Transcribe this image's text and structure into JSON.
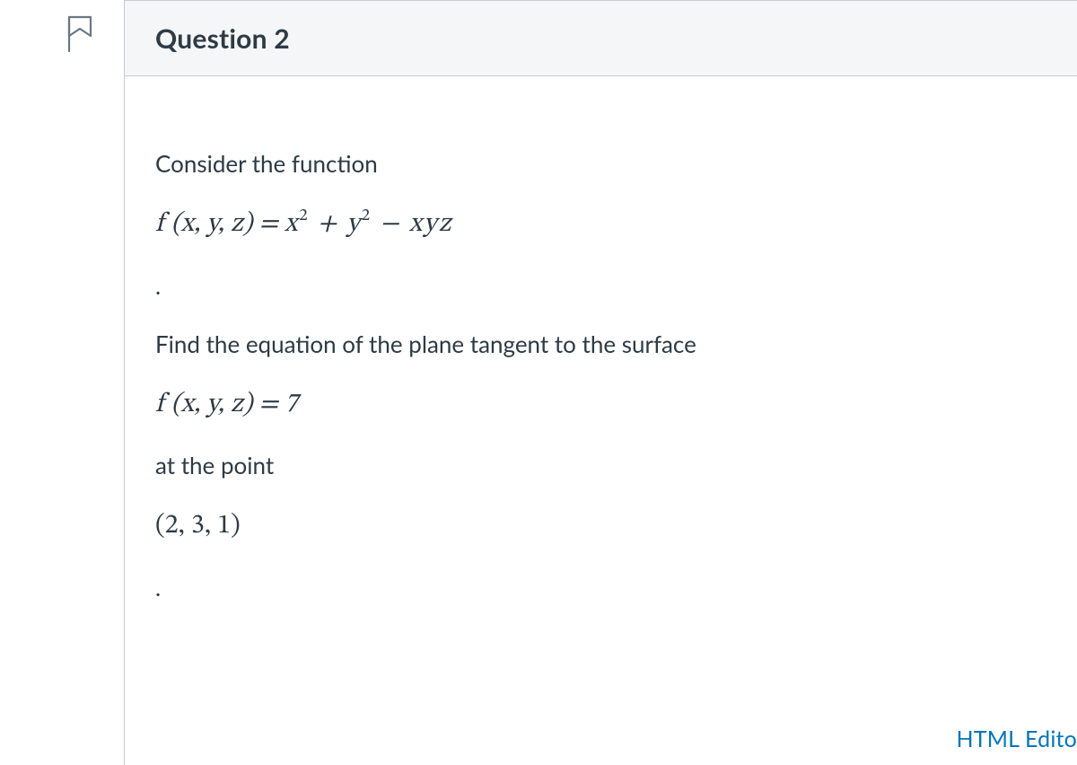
{
  "colors": {
    "text": "#2d3b45",
    "border": "#c6cbd0",
    "header_bg": "#f5f6f7",
    "link": "#0576b9",
    "icon_stroke": "#6a7883",
    "page_bg": "#ffffff"
  },
  "header": {
    "title": "Question 2"
  },
  "body": {
    "line1": "Consider the function",
    "eq1_lhs": "f (x, y, z) = ",
    "eq1_rhs_html": "x<sup>2</sup> + y<sup>2</sup> − xyz",
    "dot1": ".",
    "line2": "Find the equation of the plane tangent to the surface",
    "eq2": "f (x, y, z) = 7",
    "line3": "at the point",
    "point": "(2, 3, 1)",
    "dot2": "."
  },
  "footer": {
    "editor_label": "HTML Edito"
  }
}
